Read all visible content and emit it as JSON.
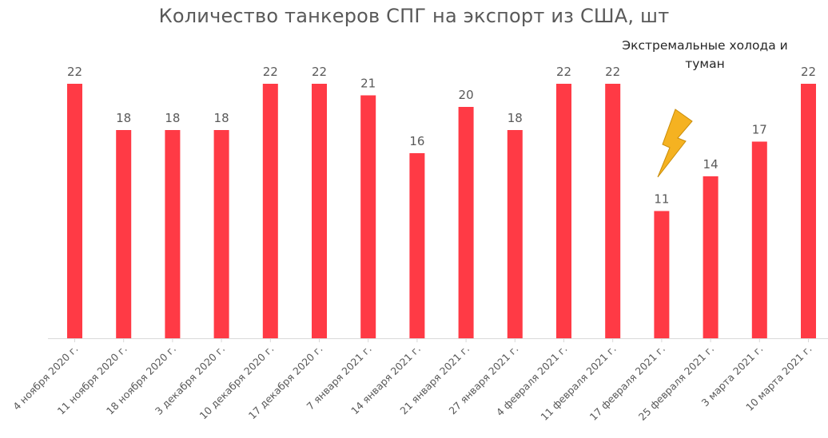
{
  "chart_data": {
    "type": "bar",
    "title": "Количество танкеров СПГ на экспорт из США, шт",
    "categories": [
      "4 ноября 2020 г.",
      "11 ноября 2020 г.",
      "18 ноября 2020 г.",
      "3 декабря 2020 г.",
      "10 декабря 2020 г.",
      "17 декабря 2020 г.",
      "7 января 2021 г.",
      "14 января 2021 г.",
      "21 января 2021 г.",
      "27 января 2021 г.",
      "4 февраля 2021 г.",
      "11 февраля 2021 г.",
      "17 февраля 2021 г.",
      "25 февраля 2021 г.",
      "3 марта 2021 г.",
      "10 марта 2021 г."
    ],
    "values": [
      22,
      18,
      18,
      18,
      22,
      22,
      21,
      16,
      20,
      18,
      22,
      22,
      11,
      14,
      17,
      22
    ],
    "ylim": [
      0,
      22
    ],
    "bar_color": "#ff3a45",
    "annotation": "Экстремальные холода и туман",
    "annotation_icon": "lightning-bolt-icon",
    "grid": false
  }
}
